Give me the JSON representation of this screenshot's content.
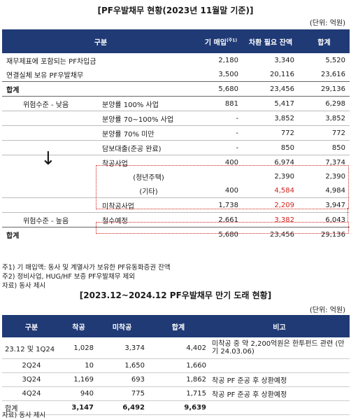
{
  "table1": {
    "title": "[PF우발채무 현황(2023년 11월말 기준)]",
    "unit": "(단위: 억원)",
    "headers": {
      "category": "구분",
      "col1": "기 매입",
      "col1_sup": "(주1)",
      "col2": "차환 필요 잔액",
      "col3": "합계"
    },
    "rows_top": [
      {
        "label": "재무제표에 포함되는 PF차입금",
        "v1": "2,180",
        "v2": "3,340",
        "v3": "5,520"
      },
      {
        "label": "연결실체 보유 PF우발채무",
        "v1": "3,500",
        "v2": "20,116",
        "v3": "23,616"
      }
    ],
    "subtotal": {
      "label": "합계",
      "v1": "5,680",
      "v2": "23,456",
      "v3": "29,136"
    },
    "risk_low": "위험수준 - 낮음",
    "risk_high": "위험수준 - 높음",
    "arrow": "↓",
    "rows_risk": [
      {
        "label": "분양률 100% 사업",
        "v1": "881",
        "v2": "5,417",
        "v3": "6,298"
      },
      {
        "label": "분양률 70~100% 사업",
        "v1": "-",
        "v2": "3,852",
        "v3": "3,852"
      },
      {
        "label": "분양률 70% 미만",
        "v1": "-",
        "v2": "772",
        "v3": "772"
      },
      {
        "label": "담보대출(준공 완료)",
        "v1": "-",
        "v2": "850",
        "v3": "850"
      },
      {
        "label": "착공사업",
        "v1": "400",
        "v2": "6,974",
        "v3": "7,374"
      },
      {
        "label": "(청년주택)",
        "v1": "",
        "v2": "2,390",
        "v3": "2,390"
      },
      {
        "label": "(기타)",
        "v1": "400",
        "v2": "4,584",
        "v3": "4,984"
      },
      {
        "label": "미착공사업",
        "v1": "1,738",
        "v2": "2,209",
        "v3": "3,947"
      },
      {
        "label": "철수예정",
        "v1": "2,661",
        "v2": "3,382",
        "v3": "6,043"
      }
    ],
    "total": {
      "label": "합계",
      "v1": "5,680",
      "v2": "23,456",
      "v3": "29,136"
    },
    "notes": [
      "주1) 기 매입액: 동사 및 계열사가 보유한 PF유동화증권 잔액",
      "주2) 정비사업, HUG/HF 보증 PF우발채무 제외",
      "자료) 동사 제시"
    ]
  },
  "table2": {
    "title": "[2023.12~2024.12 PF우발채무 만기 도래 현황]",
    "unit": "(단위: 억원)",
    "headers": [
      "구분",
      "착공",
      "미착공",
      "합계",
      "비고"
    ],
    "rows": [
      {
        "label": "23.12 및 1Q24",
        "c1": "1,028",
        "c2": "3,374",
        "c3": "4,402",
        "note": "미착공 중 약 2,200억원은 한투펀드 관련 (만기 24.03.06)"
      },
      {
        "label": "2Q24",
        "c1": "10",
        "c2": "1,650",
        "c3": "1,660",
        "note": ""
      },
      {
        "label": "3Q24",
        "c1": "1,169",
        "c2": "693",
        "c3": "1,862",
        "note": "착공 PF 준공 후 상환예정"
      },
      {
        "label": "4Q24",
        "c1": "940",
        "c2": "775",
        "c3": "1,715",
        "note": "착공 PF 준공 후 상환예정"
      }
    ],
    "total": {
      "label": "합계",
      "c1": "3,147",
      "c2": "6,492",
      "c3": "9,639"
    },
    "source": "자료) 동사 제시"
  },
  "colors": {
    "header_bg": "#1f3a75",
    "highlight": "#d0221b"
  }
}
